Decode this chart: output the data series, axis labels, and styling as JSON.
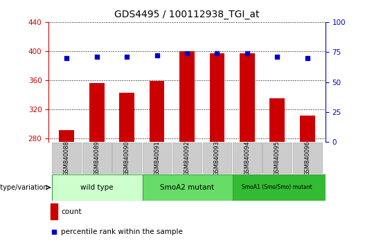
{
  "title": "GDS4495 / 100112938_TGI_at",
  "samples": [
    "GSM840088",
    "GSM840089",
    "GSM840090",
    "GSM840091",
    "GSM840092",
    "GSM840093",
    "GSM840094",
    "GSM840095",
    "GSM840096"
  ],
  "counts": [
    291,
    356,
    343,
    359,
    400,
    397,
    397,
    335,
    311
  ],
  "percentile_ranks": [
    70,
    71,
    71,
    72,
    74,
    74,
    74,
    71,
    70
  ],
  "ylim_left": [
    275,
    440
  ],
  "ylim_right": [
    0,
    100
  ],
  "yticks_left": [
    280,
    320,
    360,
    400,
    440
  ],
  "yticks_right": [
    0,
    25,
    50,
    75,
    100
  ],
  "bar_color": "#cc0000",
  "dot_color": "#0000cc",
  "bar_bottom": 275,
  "groups": [
    {
      "label": "wild type",
      "start": 0,
      "end": 3,
      "color": "#ccffcc"
    },
    {
      "label": "SmoA2 mutant",
      "start": 3,
      "end": 6,
      "color": "#66dd66"
    },
    {
      "label": "SmoA1 (Smo/Smo) mutant",
      "start": 6,
      "end": 9,
      "color": "#33bb33"
    }
  ],
  "legend_count_label": "count",
  "legend_pct_label": "percentile rank within the sample",
  "xlabel_genotype": "genotype/variation",
  "axis_label_color_left": "#cc0000",
  "axis_label_color_right": "#0000cc",
  "tick_label_bg": "#cccccc",
  "sample_box_edge": "#aaaaaa"
}
